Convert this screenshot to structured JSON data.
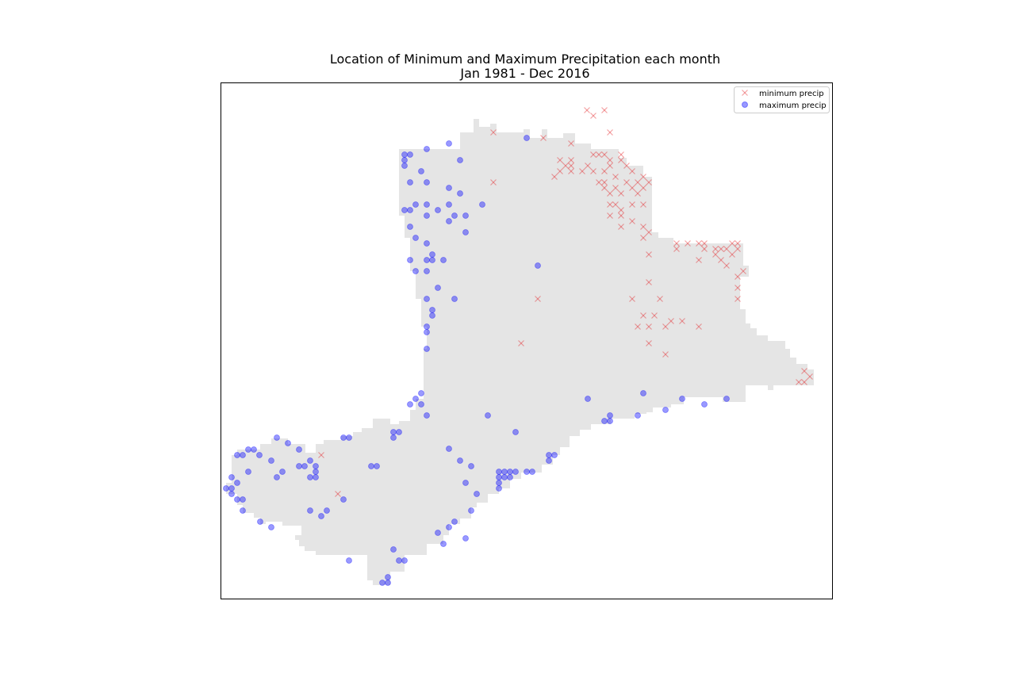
{
  "chart_data": {
    "type": "scatter",
    "title": "Location of Minimum and Maximum Precipitation each month",
    "subtitle": "Jan 1981 - Dec 2016",
    "xlabel": "",
    "ylabel": "",
    "grid": false,
    "legend_position": "top-right",
    "axes_ticks_visible": false,
    "colors": {
      "region_fill": "#e5e5e5",
      "min_marker": "#e41a1c",
      "max_marker": "#0000ff",
      "frame": "#000000"
    },
    "series": [
      {
        "name": "minimum precip",
        "marker": "x",
        "color": "#e41a1c",
        "points": [
          [
            740,
            139
          ],
          [
            762,
            139
          ],
          [
            748,
            146
          ],
          [
            769,
            167
          ],
          [
            622,
            167
          ],
          [
            685,
            174
          ],
          [
            720,
            181
          ],
          [
            748,
            195
          ],
          [
            755,
            195
          ],
          [
            762,
            195
          ],
          [
            783,
            195
          ],
          [
            706,
            202
          ],
          [
            720,
            202
          ],
          [
            769,
            202
          ],
          [
            783,
            202
          ],
          [
            713,
            209
          ],
          [
            720,
            209
          ],
          [
            741,
            209
          ],
          [
            769,
            209
          ],
          [
            790,
            209
          ],
          [
            706,
            216
          ],
          [
            720,
            216
          ],
          [
            734,
            216
          ],
          [
            748,
            216
          ],
          [
            762,
            216
          ],
          [
            797,
            216
          ],
          [
            699,
            223
          ],
          [
            776,
            223
          ],
          [
            811,
            223
          ],
          [
            622,
            230
          ],
          [
            755,
            230
          ],
          [
            762,
            230
          ],
          [
            790,
            230
          ],
          [
            804,
            230
          ],
          [
            818,
            230
          ],
          [
            762,
            237
          ],
          [
            776,
            237
          ],
          [
            797,
            237
          ],
          [
            811,
            237
          ],
          [
            769,
            244
          ],
          [
            783,
            244
          ],
          [
            804,
            244
          ],
          [
            769,
            258
          ],
          [
            776,
            258
          ],
          [
            797,
            258
          ],
          [
            811,
            258
          ],
          [
            783,
            265
          ],
          [
            769,
            272
          ],
          [
            783,
            272
          ],
          [
            797,
            279
          ],
          [
            783,
            286
          ],
          [
            811,
            286
          ],
          [
            818,
            293
          ],
          [
            811,
            300
          ],
          [
            853,
            307
          ],
          [
            867,
            307
          ],
          [
            881,
            307
          ],
          [
            888,
            307
          ],
          [
            923,
            307
          ],
          [
            930,
            307
          ],
          [
            888,
            314
          ],
          [
            902,
            314
          ],
          [
            909,
            314
          ],
          [
            916,
            314
          ],
          [
            930,
            314
          ],
          [
            853,
            314
          ],
          [
            818,
            321
          ],
          [
            902,
            321
          ],
          [
            923,
            321
          ],
          [
            909,
            328
          ],
          [
            881,
            328
          ],
          [
            916,
            335
          ],
          [
            937,
            342
          ],
          [
            930,
            349
          ],
          [
            818,
            356
          ],
          [
            930,
            363
          ],
          [
            678,
            377
          ],
          [
            797,
            377
          ],
          [
            832,
            377
          ],
          [
            930,
            377
          ],
          [
            811,
            398
          ],
          [
            825,
            398
          ],
          [
            846,
            405
          ],
          [
            860,
            405
          ],
          [
            804,
            412
          ],
          [
            818,
            412
          ],
          [
            839,
            412
          ],
          [
            881,
            412
          ],
          [
            657,
            433
          ],
          [
            818,
            433
          ],
          [
            839,
            447
          ],
          [
            1014,
            468
          ],
          [
            1021,
            475
          ],
          [
            1007,
            482
          ],
          [
            1014,
            482
          ],
          [
            405,
            574
          ],
          [
            426,
            623
          ]
        ]
      },
      {
        "name": "maximum precip",
        "marker": "o",
        "color": "#0000ff",
        "points": [
          [
            566,
            181
          ],
          [
            664,
            174
          ],
          [
            510,
            195
          ],
          [
            517,
            195
          ],
          [
            538,
            188
          ],
          [
            510,
            202
          ],
          [
            580,
            202
          ],
          [
            510,
            209
          ],
          [
            531,
            216
          ],
          [
            517,
            230
          ],
          [
            538,
            230
          ],
          [
            566,
            237
          ],
          [
            580,
            244
          ],
          [
            524,
            258
          ],
          [
            538,
            258
          ],
          [
            566,
            258
          ],
          [
            608,
            258
          ],
          [
            510,
            265
          ],
          [
            517,
            265
          ],
          [
            552,
            265
          ],
          [
            587,
            272
          ],
          [
            538,
            272
          ],
          [
            566,
            279
          ],
          [
            573,
            272
          ],
          [
            587,
            293
          ],
          [
            517,
            286
          ],
          [
            524,
            300
          ],
          [
            538,
            307
          ],
          [
            545,
            321
          ],
          [
            517,
            328
          ],
          [
            538,
            328
          ],
          [
            545,
            328
          ],
          [
            559,
            328
          ],
          [
            524,
            342
          ],
          [
            538,
            342
          ],
          [
            678,
            335
          ],
          [
            552,
            363
          ],
          [
            538,
            377
          ],
          [
            573,
            377
          ],
          [
            545,
            391
          ],
          [
            545,
            398
          ],
          [
            538,
            412
          ],
          [
            538,
            419
          ],
          [
            538,
            440
          ],
          [
            531,
            496
          ],
          [
            524,
            503
          ],
          [
            517,
            510
          ],
          [
            531,
            510
          ],
          [
            538,
            524
          ],
          [
            615,
            524
          ],
          [
            741,
            503
          ],
          [
            811,
            496
          ],
          [
            860,
            503
          ],
          [
            888,
            510
          ],
          [
            916,
            503
          ],
          [
            839,
            517
          ],
          [
            804,
            524
          ],
          [
            769,
            524
          ],
          [
            762,
            531
          ],
          [
            769,
            531
          ],
          [
            650,
            545
          ],
          [
            349,
            552
          ],
          [
            433,
            552
          ],
          [
            440,
            552
          ],
          [
            496,
            545
          ],
          [
            503,
            545
          ],
          [
            496,
            552
          ],
          [
            363,
            559
          ],
          [
            566,
            566
          ],
          [
            299,
            574
          ],
          [
            306,
            574
          ],
          [
            313,
            567
          ],
          [
            320,
            567
          ],
          [
            327,
            574
          ],
          [
            377,
            567
          ],
          [
            580,
            581
          ],
          [
            391,
            581
          ],
          [
            342,
            581
          ],
          [
            356,
            595
          ],
          [
            349,
            602
          ],
          [
            384,
            588
          ],
          [
            377,
            588
          ],
          [
            398,
            588
          ],
          [
            398,
            595
          ],
          [
            391,
            602
          ],
          [
            398,
            602
          ],
          [
            468,
            588
          ],
          [
            475,
            588
          ],
          [
            594,
            588
          ],
          [
            629,
            595
          ],
          [
            636,
            595
          ],
          [
            643,
            595
          ],
          [
            650,
            595
          ],
          [
            664,
            595
          ],
          [
            671,
            595
          ],
          [
            692,
            574
          ],
          [
            699,
            574
          ],
          [
            692,
            581
          ],
          [
            629,
            602
          ],
          [
            636,
            602
          ],
          [
            643,
            602
          ],
          [
            629,
            609
          ],
          [
            587,
            609
          ],
          [
            601,
            623
          ],
          [
            292,
            602
          ],
          [
            313,
            595
          ],
          [
            299,
            609
          ],
          [
            285,
            616
          ],
          [
            292,
            616
          ],
          [
            292,
            623
          ],
          [
            299,
            630
          ],
          [
            306,
            630
          ],
          [
            433,
            630
          ],
          [
            391,
            644
          ],
          [
            412,
            644
          ],
          [
            405,
            651
          ],
          [
            594,
            644
          ],
          [
            306,
            644
          ],
          [
            328,
            658
          ],
          [
            342,
            665
          ],
          [
            573,
            658
          ],
          [
            566,
            665
          ],
          [
            552,
            672
          ],
          [
            587,
            679
          ],
          [
            559,
            686
          ],
          [
            496,
            693
          ],
          [
            503,
            707
          ],
          [
            510,
            707
          ],
          [
            440,
            707
          ],
          [
            489,
            728
          ],
          [
            482,
            735
          ],
          [
            489,
            735
          ],
          [
            629,
            616
          ]
        ]
      }
    ]
  }
}
